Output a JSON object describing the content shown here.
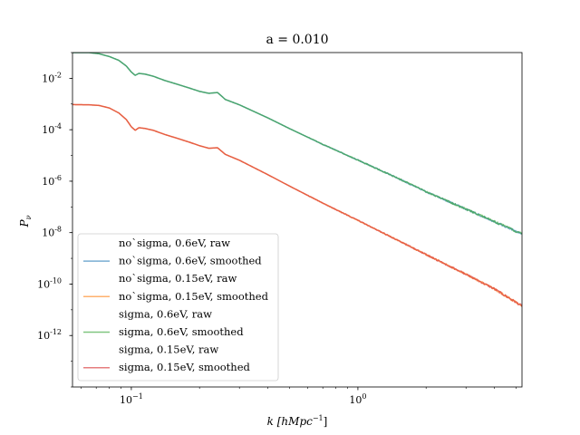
{
  "chart_data": {
    "type": "line",
    "title": "a = 0.010",
    "xlabel": "k [hMpc",
    "xlabel_sup": "−1",
    "xlabel_tail": "]",
    "ylabel": "P",
    "ylabel_sub": "ν",
    "x_scale": "log",
    "y_scale": "log",
    "xlim": [
      0.055,
      5.3
    ],
    "ylim": [
      1e-14,
      0.1
    ],
    "x_ticks": [
      {
        "value": 0.1,
        "base": "10",
        "exp": "−1"
      },
      {
        "value": 1,
        "base": "10",
        "exp": "0"
      }
    ],
    "y_ticks": [
      {
        "value": 0.01,
        "base": "10",
        "exp": "-2"
      },
      {
        "value": 0.0001,
        "base": "10",
        "exp": "-4"
      },
      {
        "value": 1e-06,
        "base": "10",
        "exp": "-6"
      },
      {
        "value": 1e-08,
        "base": "10",
        "exp": "-8"
      },
      {
        "value": 1e-10,
        "base": "10",
        "exp": "-10"
      },
      {
        "value": 1e-12,
        "base": "10",
        "exp": "-12"
      }
    ],
    "grid": false,
    "legend_position": "lower-left",
    "series": [
      {
        "name": "no`sigma, 0.6eV, raw",
        "color": "",
        "draw": false
      },
      {
        "name": "no`sigma, 0.6eV, smoothed",
        "color": "#1f77b4",
        "draw": true,
        "shape": "upper"
      },
      {
        "name": "no`sigma, 0.15eV, raw",
        "color": "",
        "draw": false
      },
      {
        "name": "no`sigma, 0.15eV, smoothed",
        "color": "#ff7f0e",
        "draw": true,
        "shape": "lower"
      },
      {
        "name": "sigma, 0.6eV, raw",
        "color": "",
        "draw": false
      },
      {
        "name": "sigma, 0.6eV, smoothed",
        "color": "#2ca02c",
        "draw": true,
        "shape": "upper"
      },
      {
        "name": "sigma, 0.15eV, raw",
        "color": "",
        "draw": false
      },
      {
        "name": "sigma, 0.15eV, smoothed",
        "color": "#d62728",
        "draw": true,
        "shape": "lower"
      }
    ],
    "curves": {
      "upper": {
        "x": [
          0.055,
          0.065,
          0.072,
          0.08,
          0.088,
          0.095,
          0.1,
          0.104,
          0.108,
          0.115,
          0.125,
          0.14,
          0.16,
          0.18,
          0.2,
          0.22,
          0.24,
          0.26,
          0.3,
          0.4,
          0.5,
          0.7,
          1.0,
          1.5,
          2.0,
          3.0,
          4.0,
          5.3
        ],
        "y": [
          0.1,
          0.1,
          0.09,
          0.07,
          0.05,
          0.03,
          0.0175,
          0.013,
          0.0155,
          0.0145,
          0.012,
          0.0083,
          0.0058,
          0.0042,
          0.0031,
          0.0026,
          0.0028,
          0.0015,
          0.00093,
          0.00029,
          0.00011,
          2.7e-05,
          6.6e-06,
          1.3e-06,
          3.9e-07,
          8.2e-08,
          2.7e-08,
          8.8e-09
        ]
      },
      "lower": {
        "x": [
          0.055,
          0.065,
          0.072,
          0.08,
          0.088,
          0.095,
          0.1,
          0.104,
          0.108,
          0.115,
          0.125,
          0.14,
          0.16,
          0.18,
          0.2,
          0.22,
          0.24,
          0.26,
          0.3,
          0.4,
          0.5,
          0.7,
          1.0,
          1.5,
          2.0,
          3.0,
          4.0,
          5.3
        ],
        "y": [
          0.00095,
          0.00093,
          0.00088,
          0.0007,
          0.00045,
          0.00025,
          0.00013,
          9.5e-05,
          0.00012,
          0.000112,
          9.5e-05,
          6.6e-05,
          4.6e-05,
          3.3e-05,
          2.4e-05,
          1.9e-05,
          2e-05,
          1.1e-05,
          6.5e-06,
          1.8e-06,
          6.4e-07,
          1.4e-07,
          3e-08,
          5e-09,
          1.4e-09,
          2.4e-10,
          6.5e-11,
          1.4e-11
        ]
      }
    }
  }
}
